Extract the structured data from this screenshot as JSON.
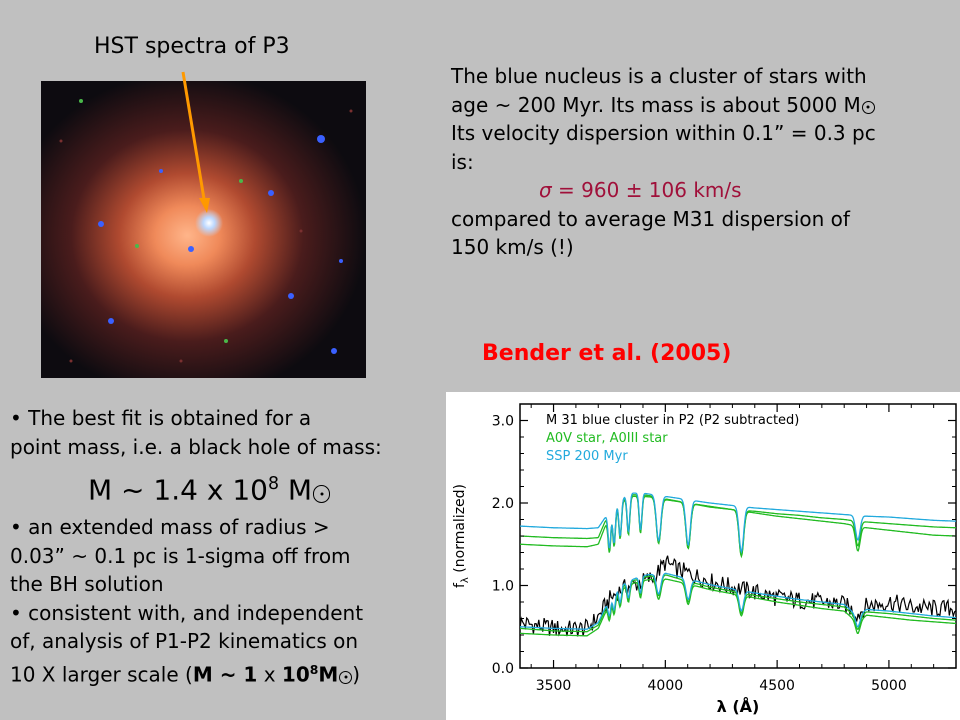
{
  "slide": {
    "image_label": "HST spectra of P3",
    "nucleus_text": {
      "line1": "The blue nucleus is a cluster of stars with",
      "line2": "age ~ 200 Myr. Its mass is about 5000 M",
      "line3": "Its velocity dispersion within 0.1” = 0.3 pc",
      "line4": "is:",
      "sigma_symbol": "σ",
      "sigma_value": " = 960 ± 106 km/s",
      "line6": "compared to average M31 dispersion of",
      "line7": "150 km/s (!)"
    },
    "reference": "Bender et al. (2005)",
    "bullets": {
      "b1_line1": "• The best fit is obtained for a",
      "b1_line2": "point mass, i.e. a black hole of mass:",
      "formula_prefix": "M  ~  1.4 x 10",
      "formula_exp": "8",
      "formula_unit": " M",
      "b2_line1": "• an extended mass of radius >",
      "b2_line2": "0.03” ~ 0.1 pc is 1-sigma off from",
      "b2_line3": "the BH solution",
      "b3_line1": "• consistent with, and independent",
      "b3_line2": "of, analysis of P1-P2 kinematics on",
      "b3_line3_prefix": "10 X larger scale (",
      "b3_bold_m": "M ~ 1",
      "b3_times": " x ",
      "b3_bold_10": "10",
      "b3_exp": "8",
      "b3_bold_msun": "M",
      "b3_close": ")"
    }
  },
  "colors": {
    "background": "#c0c0c0",
    "arrow": "#ff9900",
    "sigma": "#a0103a",
    "reference": "#ff0000",
    "series_black": "#000000",
    "series_green": "#22bb22",
    "series_cyan": "#22aadd"
  },
  "chart_data": {
    "type": "line",
    "xlabel": "λ  (Å)",
    "ylabel": "f",
    "ylabel_sub": "λ",
    "ylabel_rest": " (normalized)",
    "xlim": [
      3350,
      5300
    ],
    "ylim": [
      0,
      3.2
    ],
    "x_ticks": [
      3500,
      4000,
      4500,
      5000
    ],
    "x_tick_labels": [
      "3500",
      "4000",
      "4500",
      "5000"
    ],
    "y_ticks": [
      0,
      1,
      2,
      3
    ],
    "y_tick_labels": [
      "0.0",
      "1.0",
      "2.0",
      "3.0"
    ],
    "legend_position": "top-left",
    "legend": [
      {
        "label": "M 31 blue cluster in P2 (P2 subtracted)",
        "color": "#000000"
      },
      {
        "label": "A0V star, A0III star",
        "color": "#22bb22"
      },
      {
        "label": "SSP 200 Myr",
        "color": "#22aadd"
      }
    ],
    "balmer_lines": [
      3750,
      3771,
      3798,
      3835,
      3889,
      3970,
      4102,
      4340,
      4861
    ],
    "series": [
      {
        "name": "M 31 blue cluster in P2 (P2 subtracted)",
        "color": "#000000",
        "x": [
          3350,
          3450,
          3550,
          3650,
          3700,
          3750,
          3800,
          3850,
          3900,
          3950,
          4000,
          4050,
          4100,
          4150,
          4200,
          4300,
          4400,
          4500,
          4600,
          4700,
          4800,
          4860,
          4900,
          5000,
          5100,
          5200,
          5300
        ],
        "y": [
          0.55,
          0.5,
          0.47,
          0.48,
          0.62,
          0.83,
          0.95,
          1.0,
          1.05,
          1.1,
          1.28,
          1.2,
          1.15,
          1.1,
          1.05,
          0.98,
          0.92,
          0.85,
          0.82,
          0.8,
          0.77,
          0.65,
          0.75,
          0.8,
          0.74,
          0.72,
          0.72
        ]
      },
      {
        "name": "A0V star",
        "color": "#22bb22",
        "x": [
          3350,
          3500,
          3650,
          3700,
          3750,
          3800,
          3850,
          3900,
          3950,
          4000,
          4100,
          4200,
          4300,
          4400,
          4500,
          4600,
          4700,
          4800,
          4860,
          4900,
          5000,
          5100,
          5200,
          5300
        ],
        "y": [
          1.6,
          1.58,
          1.57,
          1.58,
          1.9,
          2.05,
          2.1,
          2.1,
          2.08,
          2.05,
          2.0,
          1.95,
          1.92,
          1.9,
          1.87,
          1.85,
          1.82,
          1.8,
          1.78,
          1.77,
          1.75,
          1.73,
          1.71,
          1.7
        ]
      },
      {
        "name": "A0III star",
        "color": "#22bb22",
        "x": [
          3350,
          3500,
          3650,
          3700,
          3750,
          3800,
          3850,
          3900,
          3950,
          4000,
          4100,
          4200,
          4300,
          4400,
          4500,
          4600,
          4700,
          4800,
          4860,
          4900,
          5000,
          5100,
          5200,
          5300
        ],
        "y": [
          1.5,
          1.48,
          1.47,
          1.5,
          1.85,
          2.02,
          2.08,
          2.08,
          2.07,
          2.04,
          2.0,
          1.96,
          1.92,
          1.88,
          1.84,
          1.81,
          1.78,
          1.75,
          1.72,
          1.7,
          1.67,
          1.64,
          1.61,
          1.6
        ]
      },
      {
        "name": "SSP 200 Myr",
        "color": "#22aadd",
        "x": [
          3350,
          3500,
          3650,
          3700,
          3750,
          3800,
          3850,
          3900,
          3950,
          4000,
          4100,
          4200,
          4300,
          4400,
          4500,
          4600,
          4700,
          4800,
          4860,
          4900,
          5000,
          5100,
          5200,
          5300
        ],
        "y": [
          1.72,
          1.7,
          1.69,
          1.7,
          1.9,
          2.05,
          2.12,
          2.12,
          2.1,
          2.08,
          2.04,
          2.0,
          1.97,
          1.94,
          1.92,
          1.9,
          1.88,
          1.86,
          1.85,
          1.84,
          1.83,
          1.81,
          1.79,
          1.78
        ]
      },
      {
        "name": "A0V star (shifted)",
        "color": "#22bb22",
        "x": [
          3350,
          3500,
          3650,
          3700,
          3750,
          3800,
          3850,
          3900,
          3950,
          4000,
          4100,
          4200,
          4300,
          4400,
          4500,
          4600,
          4700,
          4800,
          4860,
          4900,
          5000,
          5100,
          5200,
          5300
        ],
        "y": [
          0.48,
          0.45,
          0.44,
          0.52,
          0.82,
          0.98,
          1.05,
          1.1,
          1.12,
          1.13,
          1.05,
          0.98,
          0.93,
          0.88,
          0.84,
          0.8,
          0.77,
          0.74,
          0.6,
          0.68,
          0.66,
          0.63,
          0.6,
          0.58
        ]
      },
      {
        "name": "A0III star (shifted)",
        "color": "#22bb22",
        "x": [
          3350,
          3500,
          3650,
          3700,
          3750,
          3800,
          3850,
          3900,
          3950,
          4000,
          4100,
          4200,
          4300,
          4400,
          4500,
          4600,
          4700,
          4800,
          4860,
          4900,
          5000,
          5100,
          5200,
          5300
        ],
        "y": [
          0.42,
          0.4,
          0.39,
          0.48,
          0.78,
          0.95,
          1.02,
          1.06,
          1.08,
          1.08,
          1.02,
          0.95,
          0.9,
          0.85,
          0.8,
          0.76,
          0.72,
          0.69,
          0.55,
          0.64,
          0.61,
          0.58,
          0.56,
          0.54
        ]
      },
      {
        "name": "SSP 200 Myr (shifted)",
        "color": "#22aadd",
        "x": [
          3350,
          3500,
          3650,
          3700,
          3750,
          3800,
          3850,
          3900,
          3950,
          4000,
          4100,
          4200,
          4300,
          4400,
          4500,
          4600,
          4700,
          4800,
          4860,
          4900,
          5000,
          5100,
          5200,
          5300
        ],
        "y": [
          0.5,
          0.48,
          0.47,
          0.55,
          0.84,
          1.0,
          1.07,
          1.12,
          1.14,
          1.15,
          1.08,
          1.01,
          0.96,
          0.91,
          0.87,
          0.83,
          0.8,
          0.77,
          0.63,
          0.71,
          0.69,
          0.66,
          0.63,
          0.61
        ]
      }
    ]
  }
}
